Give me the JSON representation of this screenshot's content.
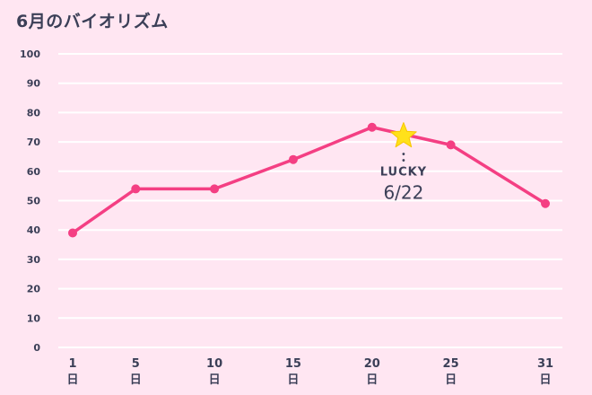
{
  "chart_data": {
    "type": "line",
    "title": "6月のバイオリズム",
    "x": [
      1,
      5,
      10,
      15,
      20,
      25,
      31
    ],
    "x_tick_labels": [
      "1",
      "5",
      "10",
      "15",
      "20",
      "25",
      "31"
    ],
    "x_tick_sublabel": "日",
    "series": [
      {
        "values": [
          39,
          54,
          54,
          64,
          75,
          69,
          49
        ]
      }
    ],
    "ylim": [
      0,
      100
    ],
    "y_ticks": [
      0,
      10,
      20,
      30,
      40,
      50,
      60,
      70,
      80,
      90,
      100
    ],
    "grid": true,
    "annotation": {
      "label": "LUCKY",
      "date_text": "6/22",
      "x": 22,
      "y": 72
    },
    "colors": {
      "line": "#F43F83",
      "star": "#FFE11A",
      "text": "#3B3F57",
      "grid": "#FFFFFF",
      "background": "#FFE6F2"
    }
  }
}
